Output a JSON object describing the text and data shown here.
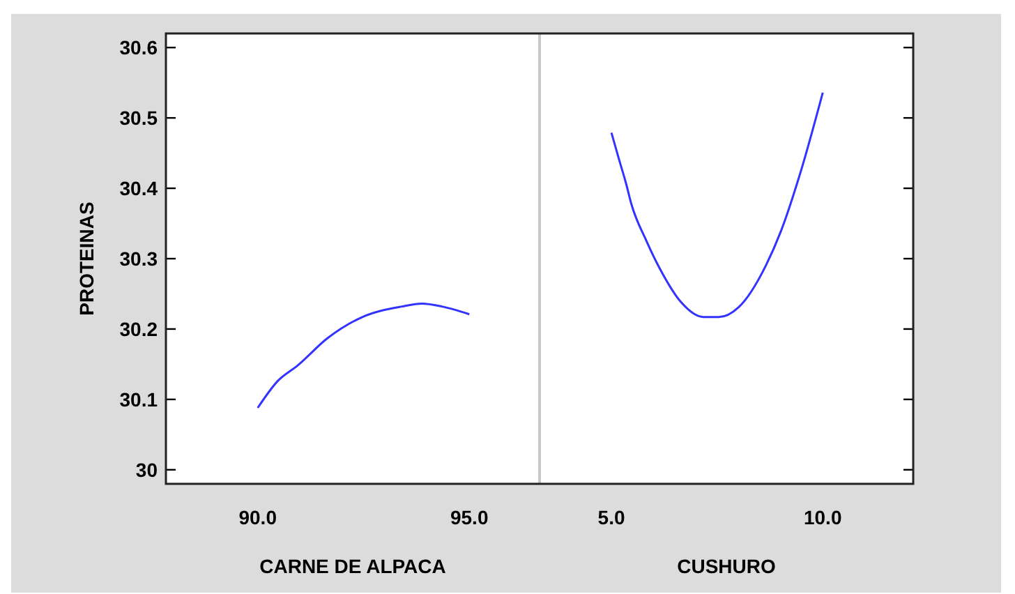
{
  "chart_data": [
    {
      "type": "line",
      "xlabel": "CARNE DE ALPACA",
      "ylabel": "PROTEINAS",
      "xlim": [
        87.83,
        96.66
      ],
      "xticks": [
        {
          "value": 90,
          "label": "90.0"
        },
        {
          "value": 95,
          "label": "95.0"
        }
      ],
      "ylim": [
        29.98,
        30.62
      ],
      "yticks": [
        30,
        30.1,
        30.2,
        30.3,
        30.4,
        30.5,
        30.6
      ],
      "line_style": "solid",
      "series": [
        {
          "color": "#3333ff",
          "x": [
            90.0,
            90.47,
            90.94,
            91.65,
            92.47,
            93.41,
            93.88,
            94.35,
            95.0
          ],
          "values": [
            30.088,
            30.126,
            30.148,
            30.187,
            30.217,
            30.232,
            30.236,
            30.232,
            30.221
          ]
        }
      ]
    },
    {
      "type": "line",
      "xlabel": "CUSHURO",
      "xlim": [
        3.3,
        12.14
      ],
      "xticks": [
        {
          "value": 5,
          "label": "5.0"
        },
        {
          "value": 10,
          "label": "10.0"
        }
      ],
      "ylim": [
        29.98,
        30.62
      ],
      "yticks": [
        30,
        30.1,
        30.2,
        30.3,
        30.4,
        30.5,
        30.6
      ],
      "tick_labels": "x",
      "line_style": "solid",
      "series": [
        {
          "color": "#3333ff",
          "x": [
            5.0,
            5.18,
            5.35,
            5.47,
            5.83,
            6.18,
            6.65,
            7.18,
            7.54,
            8.01,
            8.66,
            9.01,
            9.48,
            10.0
          ],
          "values": [
            30.479,
            30.441,
            30.406,
            30.378,
            30.325,
            30.282,
            30.238,
            30.217,
            30.217,
            30.231,
            30.291,
            30.339,
            30.424,
            30.536
          ]
        }
      ]
    }
  ]
}
